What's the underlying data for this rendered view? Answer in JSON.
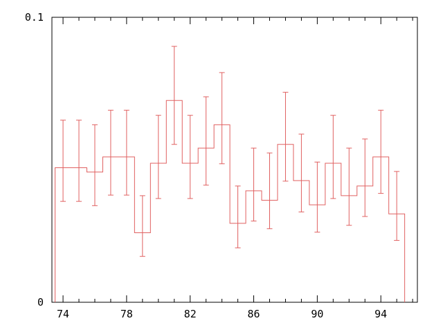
{
  "chart_data": {
    "type": "histogram",
    "title": "",
    "xlabel": "",
    "ylabel": "",
    "xlim": [
      73.3,
      96.3
    ],
    "ylim": [
      0,
      0.1
    ],
    "x_ticks": [
      74,
      78,
      82,
      86,
      90,
      94
    ],
    "x_tick_labels": [
      "74",
      "78",
      "82",
      "86",
      "90",
      "94"
    ],
    "y_ticks": [
      0,
      0.1
    ],
    "y_tick_labels": [
      "0",
      "0.1"
    ],
    "grid": false,
    "legend": "none",
    "series": [
      {
        "bin_edges": [
          73.5,
          74.5,
          75.5,
          76.5,
          77.5,
          78.5,
          79.5,
          80.5,
          81.5,
          82.5,
          83.5,
          84.5,
          85.5,
          86.5,
          87.5,
          88.5,
          89.5,
          90.5,
          91.5,
          92.5,
          93.5,
          94.5,
          95.5
        ],
        "x": [
          74,
          75,
          76,
          77,
          78,
          79,
          80,
          81,
          82,
          83,
          84,
          85,
          86,
          87,
          88,
          89,
          90,
          91,
          92,
          93,
          94,
          95
        ],
        "values": [
          0.0472,
          0.0472,
          0.0457,
          0.051,
          0.051,
          0.0244,
          0.0488,
          0.0708,
          0.0488,
          0.0541,
          0.0623,
          0.0277,
          0.0391,
          0.0358,
          0.0554,
          0.0427,
          0.0342,
          0.0488,
          0.0374,
          0.0408,
          0.051,
          0.031
        ],
        "err_low": [
          0.0354,
          0.0354,
          0.0339,
          0.0376,
          0.0376,
          0.0161,
          0.0364,
          0.0554,
          0.0364,
          0.0411,
          0.0486,
          0.0191,
          0.0285,
          0.0258,
          0.0425,
          0.0317,
          0.0246,
          0.0364,
          0.027,
          0.0301,
          0.0382,
          0.0217
        ],
        "err_high": [
          0.0639,
          0.0639,
          0.0623,
          0.0674,
          0.0674,
          0.0374,
          0.0656,
          0.0898,
          0.0656,
          0.0721,
          0.0806,
          0.0408,
          0.0541,
          0.0524,
          0.0737,
          0.059,
          0.0492,
          0.0656,
          0.0541,
          0.0573,
          0.0674,
          0.0459
        ]
      }
    ],
    "color": "#e06060"
  }
}
